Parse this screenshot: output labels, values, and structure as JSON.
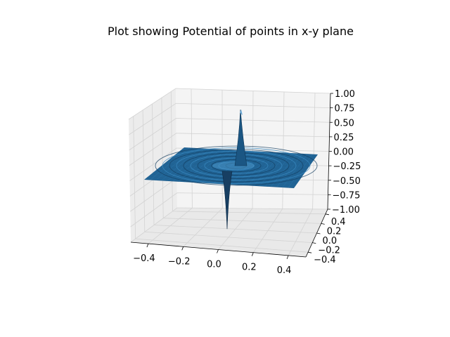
{
  "chart_data": {
    "type": "surface3d",
    "title": "Plot showing Potential of points in x-y plane",
    "xlabel": "",
    "ylabel": "",
    "zlabel": "",
    "x_ticks": [
      "−0.4",
      "−0.2",
      "0.0",
      "0.2",
      "0.4"
    ],
    "y_ticks": [
      "−0.4",
      "−0.2",
      "0.0",
      "0.2",
      "0.4"
    ],
    "z_ticks": [
      "−1.00",
      "−0.75",
      "−0.50",
      "−0.25",
      "0.00",
      "0.25",
      "0.50",
      "0.75",
      "1.00"
    ],
    "xlim": [
      -0.5,
      0.5
    ],
    "ylim": [
      -0.5,
      0.5
    ],
    "zlim": [
      -1.0,
      1.0
    ],
    "grid": true,
    "surface_color": "#1f5f8f",
    "features": [
      {
        "kind": "peak",
        "x": 0.05,
        "y": 0.0,
        "z": 0.75
      },
      {
        "kind": "trough",
        "x": 0.0,
        "y": -0.15,
        "z": -0.9
      }
    ]
  }
}
